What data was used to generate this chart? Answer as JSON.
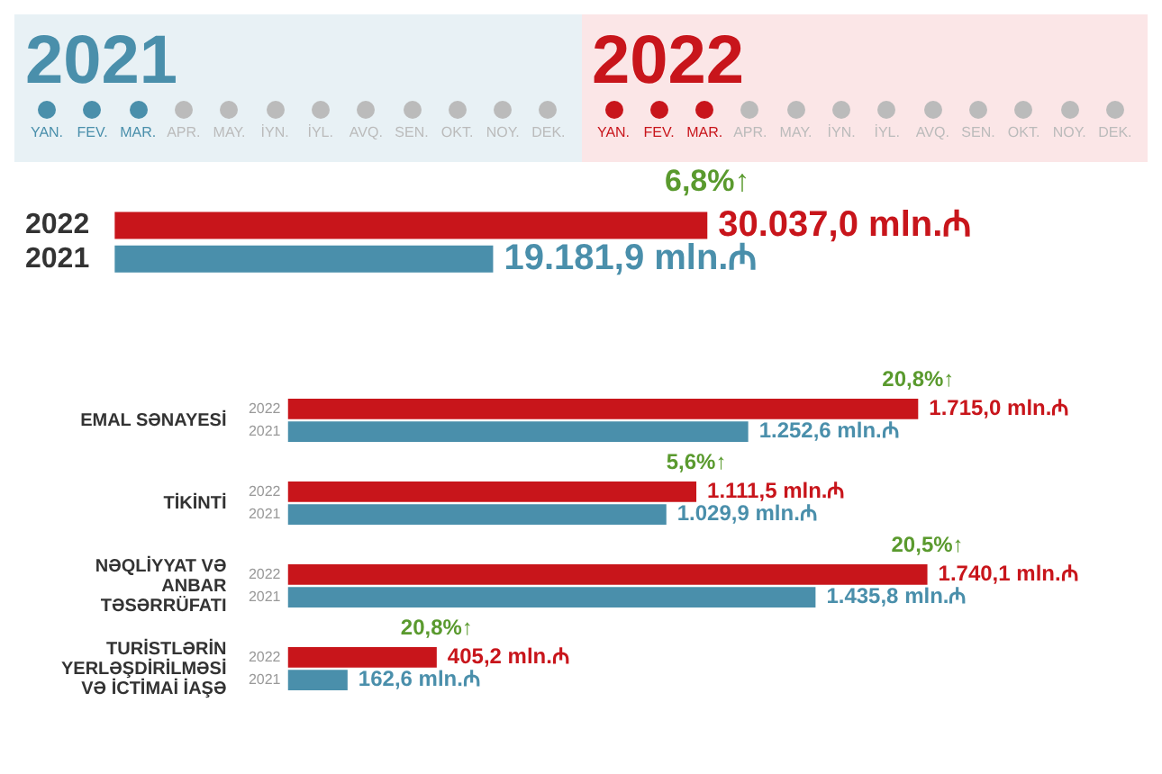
{
  "chart_data": [
    {
      "type": "other",
      "annotations": [
        "2021",
        "2022"
      ],
      "categories": [
        "YAN.",
        "FEV.",
        "MAR.",
        "APR.",
        "MAY.",
        "İYN.",
        "İYL.",
        "AVQ.",
        "SEN.",
        "OKT.",
        "NOY.",
        "DEK.",
        "YAN.",
        "FEV.",
        "MAR.",
        "APR.",
        "MAY.",
        "İYN.",
        "İYL.",
        "AVQ.",
        "SEN.",
        "OKT.",
        "NOY.",
        "DEK."
      ]
    },
    {
      "type": "bar",
      "orientation": "horizontal",
      "categories": [
        "2022",
        "2021"
      ],
      "values": [
        30037.0,
        19181.9
      ],
      "colors": [
        "#c8151b",
        "#4a8fab"
      ],
      "value_labels": [
        "30.037,0 mln.₼",
        "19.181,9 mln.₼"
      ],
      "annotations": [
        {
          "text": "6,8%↑",
          "x": 30037.0,
          "y": "2022"
        }
      ]
    },
    {
      "type": "bar",
      "orientation": "horizontal",
      "categories": [
        "EMAL SƏNAYESİ",
        "TİKİNTİ",
        "NƏQLİYYAT VƏ ANBAR TƏSƏRRÜFATI",
        "TURİSTLƏRİN YERLƏŞDİRİLMƏSİ VƏ İCTİMAİ İAŞƏ"
      ],
      "series": [
        {
          "name": "2022",
          "color": "#c8151b",
          "values": [
            1715.0,
            1111.5,
            1740.1,
            405.2
          ],
          "value_labels": [
            "1.715,0 mln.₼",
            "1.111,5 mln.₼",
            "1.740,1 mln.₼",
            "405,2 mln.₼"
          ]
        },
        {
          "name": "2021",
          "color": "#4a8fab",
          "values": [
            1252.6,
            1029.9,
            1435.8,
            162.6
          ],
          "value_labels": [
            "1.252,6 mln.₼",
            "1.029,9 mln.₼",
            "1.435,8 mln.₼",
            "162,6 mln.₼"
          ]
        }
      ],
      "annotations": [
        {
          "text": "20,8%↑",
          "x": 1715.0,
          "y": "EMAL SƏNAYESİ"
        },
        {
          "text": "5,6%↑",
          "x": 1111.5,
          "y": "TİKİNTİ"
        },
        {
          "text": "20,5%↑",
          "x": 1740.1,
          "y": "NƏQLİYYAT VƏ ANBAR TƏSƏRRÜFATI"
        },
        {
          "text": "20,8%↑",
          "x": 405.2,
          "y": "TURİSTLƏRİN YERLƏŞDİRİLMƏSİ VƏ İCTİMAİ İAŞƏ"
        }
      ]
    }
  ]
}
